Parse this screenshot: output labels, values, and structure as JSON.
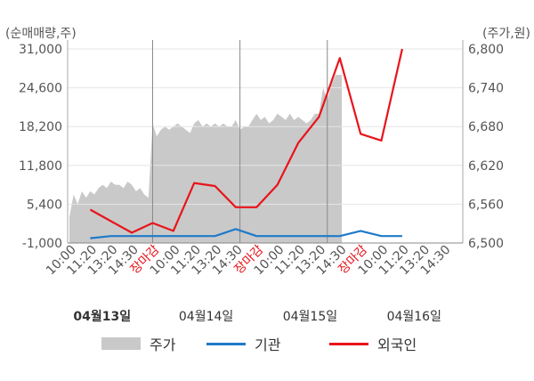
{
  "chart_data": {
    "type": "line",
    "left_axis_label": "(순매매량,주)",
    "right_axis_label": "(주가,원)",
    "left_ticks": [
      "31,000",
      "24,600",
      "18,200",
      "11,800",
      "5,400",
      "-1,000"
    ],
    "left_tick_values": [
      31000,
      24600,
      18200,
      11800,
      5400,
      -1000
    ],
    "right_ticks": [
      "6,800",
      "6,740",
      "6,680",
      "6,620",
      "6,560",
      "6,500"
    ],
    "right_tick_values": [
      6800,
      6740,
      6680,
      6620,
      6560,
      6500
    ],
    "ylim_left": [
      -1000,
      31000
    ],
    "ylim_right": [
      6500,
      6800
    ],
    "x_labels": [
      {
        "text": "10:00",
        "red": false
      },
      {
        "text": "11:20",
        "red": false
      },
      {
        "text": "13:20",
        "red": false
      },
      {
        "text": "14:30",
        "red": false
      },
      {
        "text": "장마감",
        "red": true
      },
      {
        "text": "10:00",
        "red": false
      },
      {
        "text": "11:20",
        "red": false
      },
      {
        "text": "13:20",
        "red": false
      },
      {
        "text": "14:30",
        "red": false
      },
      {
        "text": "장마감",
        "red": true
      },
      {
        "text": "10:00",
        "red": false
      },
      {
        "text": "11:20",
        "red": false
      },
      {
        "text": "13:20",
        "red": false
      },
      {
        "text": "14:30",
        "red": false
      },
      {
        "text": "장마감",
        "red": true
      },
      {
        "text": "10:00",
        "red": false
      },
      {
        "text": "11:20",
        "red": false
      },
      {
        "text": "13:20",
        "red": false
      },
      {
        "text": "14:30",
        "red": false
      }
    ],
    "x_count": 19,
    "day_labels": [
      {
        "text": "04월13일",
        "bold": true,
        "index": 2
      },
      {
        "text": "04월14일",
        "bold": false,
        "index": 7
      },
      {
        "text": "04월15일",
        "bold": false,
        "index": 12
      },
      {
        "text": "04월16일",
        "bold": false,
        "index": 17
      }
    ],
    "day_separators": [
      4,
      8.2,
      12.4
    ],
    "series": [
      {
        "name": "주가",
        "type": "area",
        "color": "#c9c9c9",
        "x": [
          0,
          0.2,
          0.4,
          0.6,
          0.8,
          1.0,
          1.2,
          1.4,
          1.6,
          1.8,
          2.0,
          2.2,
          2.4,
          2.6,
          2.8,
          3.0,
          3.2,
          3.4,
          3.6,
          3.8,
          4.0,
          4.2,
          4.4,
          4.6,
          4.8,
          5.0,
          5.2,
          5.4,
          5.6,
          5.8,
          6.0,
          6.2,
          6.4,
          6.6,
          6.8,
          7.0,
          7.2,
          7.4,
          7.6,
          7.8,
          8.0,
          8.2,
          8.4,
          8.6,
          8.8,
          9.0,
          9.2,
          9.4,
          9.6,
          9.8,
          10.0,
          10.2,
          10.4,
          10.6,
          10.8,
          11.0,
          11.2,
          11.4,
          11.6,
          11.8,
          12.0,
          12.2,
          12.4,
          12.6,
          12.8,
          13.0,
          13.1
        ],
        "values": [
          6540,
          6575,
          6560,
          6580,
          6570,
          6580,
          6575,
          6585,
          6590,
          6585,
          6595,
          6590,
          6590,
          6585,
          6595,
          6590,
          6580,
          6585,
          6575,
          6570,
          6685,
          6665,
          6675,
          6680,
          6675,
          6680,
          6685,
          6680,
          6675,
          6670,
          6685,
          6690,
          6680,
          6685,
          6680,
          6685,
          6680,
          6685,
          6680,
          6680,
          6690,
          6675,
          6680,
          6680,
          6690,
          6700,
          6690,
          6695,
          6685,
          6690,
          6700,
          6695,
          6690,
          6700,
          6690,
          6695,
          6690,
          6685,
          6690,
          6700,
          6700,
          6740,
          6720,
          6745,
          6760,
          6760,
          6760
        ]
      },
      {
        "name": "기관",
        "type": "line",
        "color": "#1e7ac9",
        "x": [
          1,
          2,
          3,
          4,
          5,
          6,
          7,
          8,
          9,
          10,
          11,
          12,
          13,
          14,
          15,
          16
        ],
        "values": [
          -200,
          150,
          150,
          150,
          150,
          150,
          150,
          1300,
          150,
          150,
          150,
          150,
          150,
          1000,
          150,
          150
        ]
      },
      {
        "name": "외국인",
        "type": "line",
        "color": "#e8141b",
        "x": [
          1,
          2,
          3,
          4,
          5,
          6,
          7,
          8,
          9,
          10,
          11,
          12,
          13,
          14,
          15,
          16
        ],
        "values": [
          4500,
          2600,
          700,
          2300,
          1000,
          8900,
          8400,
          4900,
          4900,
          8600,
          15500,
          19800,
          29500,
          17000,
          15900,
          31000
        ]
      }
    ]
  },
  "legend": {
    "items": [
      {
        "label": "주가",
        "kind": "area",
        "color": "#c9c9c9"
      },
      {
        "label": "기관",
        "kind": "line",
        "color": "#1e7ac9"
      },
      {
        "label": "외국인",
        "kind": "line",
        "color": "#e8141b"
      }
    ]
  }
}
